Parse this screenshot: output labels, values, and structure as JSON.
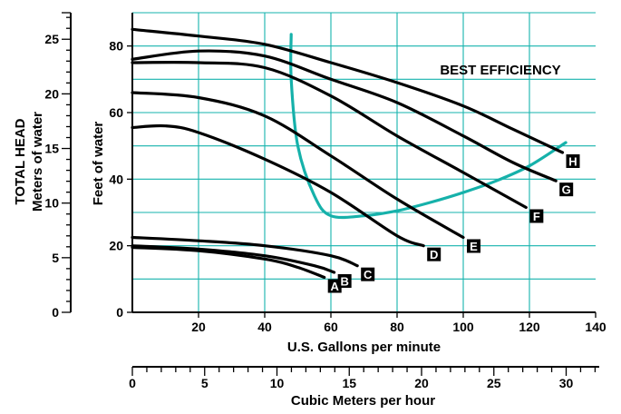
{
  "chart_data": {
    "type": "line",
    "title": "",
    "xlabel": "U.S. Gallons per minute",
    "ylabel": "Feet of water",
    "xlim": [
      0,
      140
    ],
    "ylim": [
      0,
      90
    ],
    "x_ticks": [
      "20",
      "40",
      "60",
      "80",
      "100",
      "120",
      "140"
    ],
    "y_ticks": [
      "0",
      "20",
      "40",
      "60",
      "80"
    ],
    "grid": true,
    "left_axis": {
      "label_line1": "TOTAL HEAD",
      "label_line2": "Meters of water",
      "units": "meters",
      "ticks": [
        "0",
        "5",
        "10",
        "15",
        "20",
        "25"
      ]
    },
    "bottom_axis": {
      "label": "Cubic Meters per hour",
      "units": "cubic meters per hour",
      "ticks": [
        "0",
        "5",
        "10",
        "15",
        "20",
        "25",
        "30"
      ]
    },
    "annotation": "BEST EFFICIENCY",
    "series": [
      {
        "name": "A",
        "points": [
          [
            0,
            19.5
          ],
          [
            20,
            18.5
          ],
          [
            40,
            16
          ],
          [
            50,
            13.5
          ],
          [
            58,
            10.5
          ]
        ]
      },
      {
        "name": "B",
        "points": [
          [
            0,
            20
          ],
          [
            20,
            19
          ],
          [
            40,
            17
          ],
          [
            55,
            14
          ],
          [
            61,
            12
          ]
        ]
      },
      {
        "name": "C",
        "points": [
          [
            0,
            22.5
          ],
          [
            20,
            21.5
          ],
          [
            40,
            20
          ],
          [
            60,
            17
          ],
          [
            68,
            14
          ]
        ]
      },
      {
        "name": "D",
        "points": [
          [
            0,
            55.5
          ],
          [
            10,
            56
          ],
          [
            20,
            54
          ],
          [
            40,
            46
          ],
          [
            60,
            36
          ],
          [
            80,
            23
          ],
          [
            88,
            20
          ]
        ]
      },
      {
        "name": "E",
        "points": [
          [
            0,
            66
          ],
          [
            20,
            64.5
          ],
          [
            40,
            59
          ],
          [
            60,
            47
          ],
          [
            80,
            34
          ],
          [
            100,
            22.5
          ]
        ]
      },
      {
        "name": "F",
        "points": [
          [
            0,
            75
          ],
          [
            20,
            75
          ],
          [
            40,
            73.5
          ],
          [
            60,
            65
          ],
          [
            80,
            53
          ],
          [
            100,
            42
          ],
          [
            119,
            31.5
          ]
        ]
      },
      {
        "name": "G",
        "points": [
          [
            0,
            76
          ],
          [
            20,
            78.5
          ],
          [
            40,
            77
          ],
          [
            60,
            70
          ],
          [
            80,
            63
          ],
          [
            100,
            53
          ],
          [
            115,
            45
          ],
          [
            128,
            39.5
          ]
        ]
      },
      {
        "name": "H",
        "points": [
          [
            0,
            85
          ],
          [
            20,
            83
          ],
          [
            40,
            80.5
          ],
          [
            60,
            75
          ],
          [
            80,
            69
          ],
          [
            100,
            62
          ],
          [
            115,
            55
          ],
          [
            130,
            48
          ]
        ]
      }
    ],
    "efficiency_curve": {
      "points": [
        [
          48,
          83.5
        ],
        [
          48,
          70
        ],
        [
          50,
          50
        ],
        [
          55,
          35
        ],
        [
          60,
          29
        ],
        [
          70,
          29
        ],
        [
          80,
          30.5
        ],
        [
          90,
          33
        ],
        [
          100,
          36
        ],
        [
          110,
          39.5
        ],
        [
          120,
          44
        ],
        [
          131,
          51
        ]
      ]
    },
    "colors": {
      "grid": "#15b3ad",
      "efficiency_curve": "#16b1aa",
      "pump_curves": "#000000"
    }
  }
}
